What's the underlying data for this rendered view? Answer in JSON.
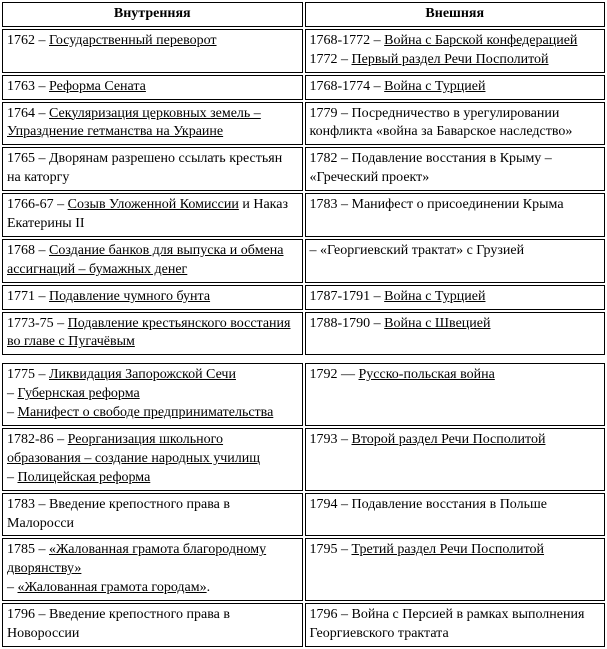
{
  "table": {
    "headers": {
      "left": "Внутренняя",
      "right": "Внешняя"
    },
    "border_color": "#000000",
    "background_color": "#ffffff",
    "text_color": "#000000",
    "font_family": "Times New Roman",
    "font_size_pt": 11,
    "rows": [
      {
        "left": {
          "pre": "1762 – ",
          "u": "Государственный переворот",
          "post": ""
        },
        "right": [
          {
            "pre": "1768-1772 – ",
            "u": "Война с Барской конфедерацией",
            "post": ""
          },
          {
            "pre": "1772 – ",
            "u": "Первый раздел Речи Посполитой",
            "post": ""
          }
        ]
      },
      {
        "left": {
          "pre": "1763 – ",
          "u": "Реформа Сената",
          "post": ""
        },
        "right": {
          "pre": "1768-1774 – ",
          "u": "Война с Турцией",
          "post": ""
        }
      },
      {
        "left": {
          "pre": "1764 – ",
          "u": "Секуляризация церковных земель – Упразднение гетманства на Украине",
          "post": ""
        },
        "right": {
          "pre": "",
          "u": "",
          "post": "1779 – Посредничество в урегулировании конфликта «война за Баварское наследство»"
        }
      },
      {
        "left": {
          "pre": "",
          "u": "",
          "post": "1765 – Дворянам разрешено ссылать крестьян на каторгу"
        },
        "right": {
          "pre": "",
          "u": "",
          "post": "1782 – Подавление восстания в Крыму – «Греческий проект»"
        }
      },
      {
        "left": {
          "pre": "1766-67 – ",
          "u": "Созыв Уложенной Комиссии",
          "post": " и Наказ Екатерины II"
        },
        "right": {
          "pre": "",
          "u": "",
          "post": "1783 – Манифест о присоединении Крыма"
        }
      },
      {
        "left": {
          "pre": "1768 – ",
          "u": "Создание банков для выпуска и обмена ассигнаций – бумажных денег",
          "post": ""
        },
        "right": {
          "pre": "",
          "u": "",
          "post": "  – «Георгиевский трактат» с Грузией"
        }
      },
      {
        "left": {
          "pre": "1771 – ",
          "u": "Подавление чумного бунта",
          "post": ""
        },
        "right": {
          "pre": "1787-1791 – ",
          "u": "Война с Турцией",
          "post": ""
        }
      },
      {
        "left": {
          "pre": "1773-75 – ",
          "u": "Подавление крестьянского восстания во главе с Пугачёвым",
          "post": ""
        },
        "right": {
          "pre": "1788-1790 – ",
          "u": "Война с Швецией",
          "post": ""
        }
      },
      {
        "left_multi": [
          {
            "pre": "1775 – ",
            "u": "Ликвидация Запорожской Сечи",
            "post": ""
          },
          {
            "pre": "   – ",
            "u": "Губернская реформа",
            "post": ""
          },
          {
            "pre": "   – ",
            "u": "Манифест о свободе предпринимательства",
            "post": ""
          }
        ],
        "right": {
          "pre": "1792 — ",
          "u": "Русско-польская война",
          "post": ""
        },
        "spacer_before": true
      },
      {
        "left_multi": [
          {
            "pre": "1782-86 – ",
            "u": "Реорганизация школьного образования – создание народных училищ",
            "post": ""
          },
          {
            "pre": "   – ",
            "u": "Полицейская реформа",
            "post": ""
          }
        ],
        "right": {
          "pre": "1793 – ",
          "u": "Второй раздел Речи Посполитой",
          "post": ""
        }
      },
      {
        "left": {
          "pre": "",
          "u": "",
          "post": "1783 – Введение крепостного права в Малоросси"
        },
        "right": {
          "pre": "",
          "u": "",
          "post": "1794 – Подавление восстания в Польше"
        }
      },
      {
        "left_multi": [
          {
            "pre": "1785 – ",
            "u": "«Жалованная грамота благородному дворянству»",
            "post": ""
          },
          {
            "pre": "   – ",
            "u": "«Жалованная грамота городам»",
            "post": "."
          }
        ],
        "right": {
          "pre": "1795 – ",
          "u": "Третий раздел Речи Посполитой",
          "post": ""
        }
      },
      {
        "left": {
          "pre": "",
          "u": "",
          "post": "1796 – Введение крепостного права в Новороссии"
        },
        "right": {
          "pre": "",
          "u": "",
          "post": "1796 – Война с Персией в рамках выполнения Георгиевского трактата"
        }
      }
    ]
  }
}
